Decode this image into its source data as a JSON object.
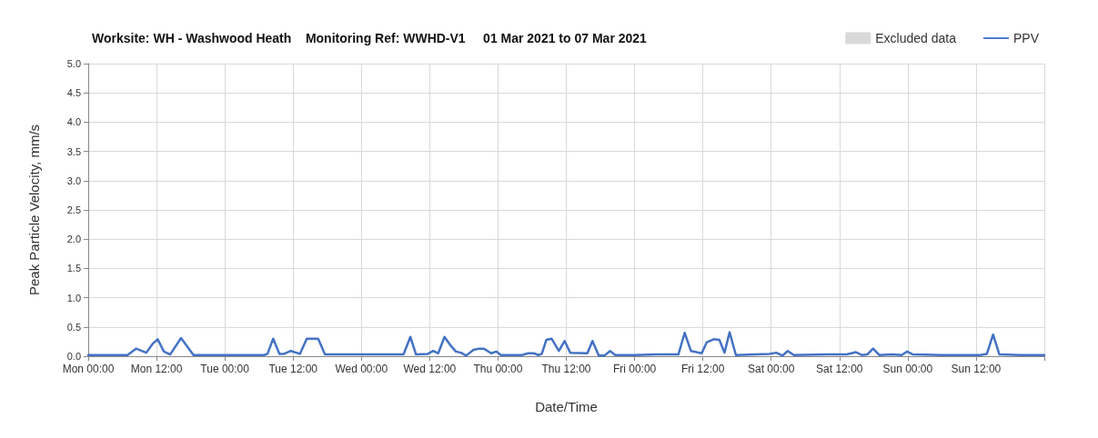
{
  "chart_data": {
    "type": "line",
    "title": "Worksite: WH - Washwood Heath    Monitoring Ref: WWHD-V1     01 Mar 2021 to 07 Mar 2021",
    "xlabel": "Date/Time",
    "ylabel": "Peak Particle Velocity, mm/s",
    "xlim": [
      "2021-03-01T00:00",
      "2021-03-08T00:00"
    ],
    "xticks": [
      {
        "value": "2021-03-01T00:00",
        "label": "Mon 00:00"
      },
      {
        "value": "2021-03-01T12:00",
        "label": "Mon 12:00"
      },
      {
        "value": "2021-03-02T00:00",
        "label": "Tue 00:00"
      },
      {
        "value": "2021-03-02T12:00",
        "label": "Tue 12:00"
      },
      {
        "value": "2021-03-03T00:00",
        "label": "Wed 00:00"
      },
      {
        "value": "2021-03-03T12:00",
        "label": "Wed 12:00"
      },
      {
        "value": "2021-03-04T00:00",
        "label": "Thu 00:00"
      },
      {
        "value": "2021-03-04T12:00",
        "label": "Thu 12:00"
      },
      {
        "value": "2021-03-05T00:00",
        "label": "Fri 00:00"
      },
      {
        "value": "2021-03-05T12:00",
        "label": "Fri 12:00"
      },
      {
        "value": "2021-03-06T00:00",
        "label": "Sat 00:00"
      },
      {
        "value": "2021-03-06T12:00",
        "label": "Sat 12:00"
      },
      {
        "value": "2021-03-07T00:00",
        "label": "Sun 00:00"
      },
      {
        "value": "2021-03-07T12:00",
        "label": "Sun 12:00"
      },
      {
        "value": "2021-03-08T00:00",
        "label": null
      }
    ],
    "ylim": [
      0,
      5
    ],
    "yticks": [
      {
        "value": 0,
        "label": "0.0"
      },
      {
        "value": 0.5,
        "label": "0.5"
      },
      {
        "value": 1,
        "label": "1.0"
      },
      {
        "value": 1.5,
        "label": "1.5"
      },
      {
        "value": 2,
        "label": "2.0"
      },
      {
        "value": 2.5,
        "label": "2.5"
      },
      {
        "value": 3,
        "label": "3.0"
      },
      {
        "value": 3.5,
        "label": "3.5"
      },
      {
        "value": 4,
        "label": "4.0"
      },
      {
        "value": 4.5,
        "label": "4.5"
      },
      {
        "value": 5,
        "label": "5.0"
      }
    ],
    "grid": true,
    "legend": "top right",
    "marker": "none",
    "line_style": "solid",
    "series": [
      {
        "name": "Excluded data",
        "type": "area",
        "color": "#d9d9d9"
      },
      {
        "name": "PPV",
        "color": "#4472c4",
        "x": [
          "2021-03-01T00:00",
          "2021-03-01T02:00",
          "2021-03-01T04:00",
          "2021-03-01T06:54",
          "2021-03-01T08:24",
          "2021-03-01T10:12",
          "2021-03-01T11:24",
          "2021-03-01T12:12",
          "2021-03-01T13:18",
          "2021-03-01T14:24",
          "2021-03-01T16:18",
          "2021-03-01T18:30",
          "2021-03-01T21:00",
          "2021-03-02T00:00",
          "2021-03-02T03:00",
          "2021-03-02T06:54",
          "2021-03-02T07:30",
          "2021-03-02T08:30",
          "2021-03-02T09:36",
          "2021-03-02T10:24",
          "2021-03-02T11:36",
          "2021-03-02T13:12",
          "2021-03-02T14:24",
          "2021-03-02T16:24",
          "2021-03-02T17:36",
          "2021-03-02T21:00",
          "2021-03-03T02:00",
          "2021-03-03T07:24",
          "2021-03-03T08:36",
          "2021-03-03T09:36",
          "2021-03-03T11:42",
          "2021-03-03T12:36",
          "2021-03-03T13:30",
          "2021-03-03T14:36",
          "2021-03-03T15:42",
          "2021-03-03T16:36",
          "2021-03-03T17:30",
          "2021-03-03T18:24",
          "2021-03-03T19:42",
          "2021-03-03T20:42",
          "2021-03-03T21:30",
          "2021-03-03T22:48",
          "2021-03-03T23:42",
          "2021-03-04T00:30",
          "2021-03-04T04:12",
          "2021-03-04T05:18",
          "2021-03-04T06:18",
          "2021-03-04T07:06",
          "2021-03-04T07:42",
          "2021-03-04T08:30",
          "2021-03-04T09:24",
          "2021-03-04T10:42",
          "2021-03-04T11:42",
          "2021-03-04T12:42",
          "2021-03-04T15:42",
          "2021-03-04T16:36",
          "2021-03-04T17:42",
          "2021-03-04T18:42",
          "2021-03-04T19:42",
          "2021-03-04T20:36",
          "2021-03-05T00:00",
          "2021-03-05T04:00",
          "2021-03-05T07:42",
          "2021-03-05T08:48",
          "2021-03-05T09:54",
          "2021-03-05T11:48",
          "2021-03-05T12:42",
          "2021-03-05T13:54",
          "2021-03-05T14:54",
          "2021-03-05T15:48",
          "2021-03-05T16:42",
          "2021-03-05T17:48",
          "2021-03-05T21:18",
          "2021-03-05T23:42",
          "2021-03-06T00:54",
          "2021-03-06T02:00",
          "2021-03-06T02:54",
          "2021-03-06T04:00",
          "2021-03-06T09:48",
          "2021-03-06T13:18",
          "2021-03-06T14:54",
          "2021-03-06T15:54",
          "2021-03-06T16:54",
          "2021-03-06T17:54",
          "2021-03-06T19:00",
          "2021-03-06T21:18",
          "2021-03-06T22:54",
          "2021-03-06T23:54",
          "2021-03-07T00:54",
          "2021-03-07T06:00",
          "2021-03-07T12:42",
          "2021-03-07T13:54",
          "2021-03-07T15:00",
          "2021-03-07T16:06",
          "2021-03-07T20:00",
          "2021-03-08T00:00"
        ],
        "values": [
          0.02,
          0.02,
          0.02,
          0.02,
          0.13,
          0.06,
          0.22,
          0.29,
          0.08,
          0.03,
          0.31,
          0.02,
          0.02,
          0.02,
          0.02,
          0.02,
          0.04,
          0.3,
          0.04,
          0.04,
          0.09,
          0.04,
          0.3,
          0.3,
          0.03,
          0.03,
          0.03,
          0.03,
          0.33,
          0.03,
          0.04,
          0.09,
          0.05,
          0.33,
          0.18,
          0.08,
          0.06,
          0.01,
          0.11,
          0.13,
          0.13,
          0.05,
          0.08,
          0.02,
          0.02,
          0.05,
          0.05,
          0.02,
          0.04,
          0.28,
          0.3,
          0.09,
          0.26,
          0.06,
          0.05,
          0.26,
          0.01,
          0.01,
          0.09,
          0.02,
          0.02,
          0.03,
          0.03,
          0.4,
          0.09,
          0.05,
          0.24,
          0.29,
          0.28,
          0.06,
          0.41,
          0.02,
          0.03,
          0.04,
          0.06,
          0.01,
          0.09,
          0.02,
          0.03,
          0.03,
          0.07,
          0.02,
          0.03,
          0.13,
          0.02,
          0.03,
          0.02,
          0.08,
          0.03,
          0.02,
          0.02,
          0.04,
          0.37,
          0.03,
          0.02,
          0.02
        ]
      }
    ]
  }
}
